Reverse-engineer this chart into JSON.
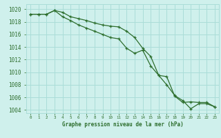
{
  "x": [
    0,
    1,
    2,
    3,
    4,
    5,
    6,
    7,
    8,
    9,
    10,
    11,
    12,
    13,
    14,
    15,
    16,
    17,
    18,
    19,
    20,
    21,
    22,
    23
  ],
  "line1": [
    1019.2,
    1019.2,
    1019.2,
    1019.8,
    1019.5,
    1018.8,
    1018.5,
    1018.2,
    1017.8,
    1017.5,
    1017.3,
    1017.2,
    1016.5,
    1015.5,
    1013.8,
    1012.5,
    1009.5,
    1009.3,
    1006.2,
    1005.2,
    1005.3,
    1005.2,
    1005.2,
    1004.5
  ],
  "line2": [
    1019.2,
    1019.2,
    1019.2,
    1019.8,
    1018.8,
    1018.2,
    1017.5,
    1017.0,
    1016.5,
    1016.0,
    1015.5,
    1015.3,
    1013.8,
    1013.0,
    1013.5,
    1011.0,
    1009.5,
    1008.0,
    1006.3,
    1005.5,
    1004.2,
    1005.0,
    1005.0,
    1004.5
  ],
  "bg_color": "#cff0ec",
  "grid_color": "#aaddd8",
  "line_color": "#2d6e2d",
  "xlabel": "Graphe pression niveau de la mer (hPa)",
  "yticks": [
    1004,
    1006,
    1008,
    1010,
    1012,
    1014,
    1016,
    1018,
    1020
  ],
  "ylim": [
    1003.5,
    1020.8
  ],
  "xlim": [
    -0.5,
    23.5
  ]
}
